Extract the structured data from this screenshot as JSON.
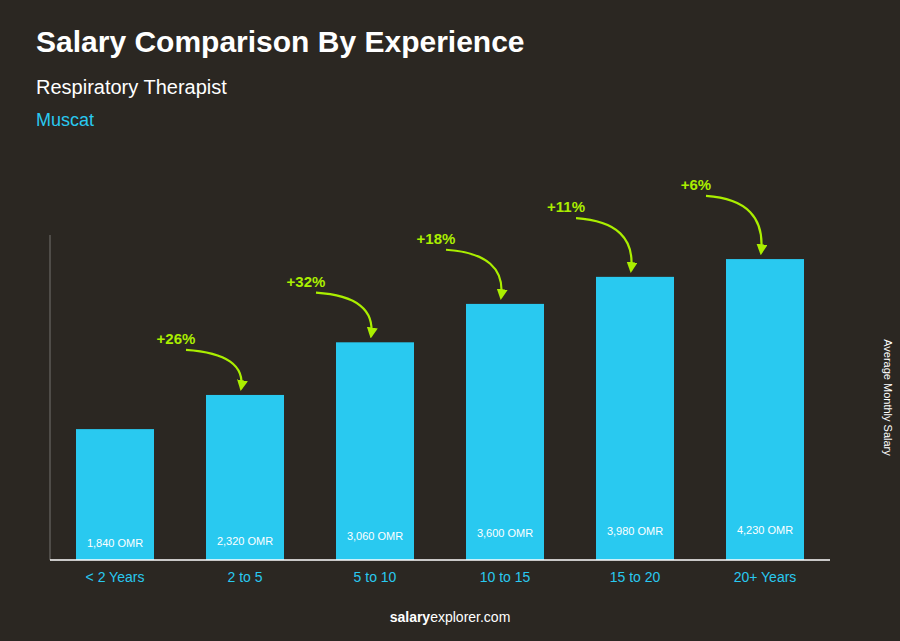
{
  "chart_data": {
    "type": "bar",
    "title": "Salary Comparison By Experience",
    "subtitle": "Respiratory Therapist",
    "city": "Muscat",
    "ylabel": "Average Monthly Salary",
    "categories": [
      "< 2 Years",
      "2 to 5",
      "5 to 10",
      "10 to 15",
      "15 to 20",
      "20+ Years"
    ],
    "values": [
      1840,
      2320,
      3060,
      3600,
      3980,
      4230
    ],
    "value_labels": [
      "1,840 OMR",
      "2,320 OMR",
      "3,060 OMR",
      "3,600 OMR",
      "3,980 OMR",
      "4,230 OMR"
    ],
    "data_labels": true,
    "color": "#29c9f0",
    "annotations": [
      "+26%",
      "+32%",
      "+18%",
      "+11%",
      "+6%"
    ],
    "watermark": [
      "salary",
      "explorer.com"
    ],
    "ylim": [
      0,
      4568.4
    ],
    "tick_labels": "x",
    "grid": false
  }
}
